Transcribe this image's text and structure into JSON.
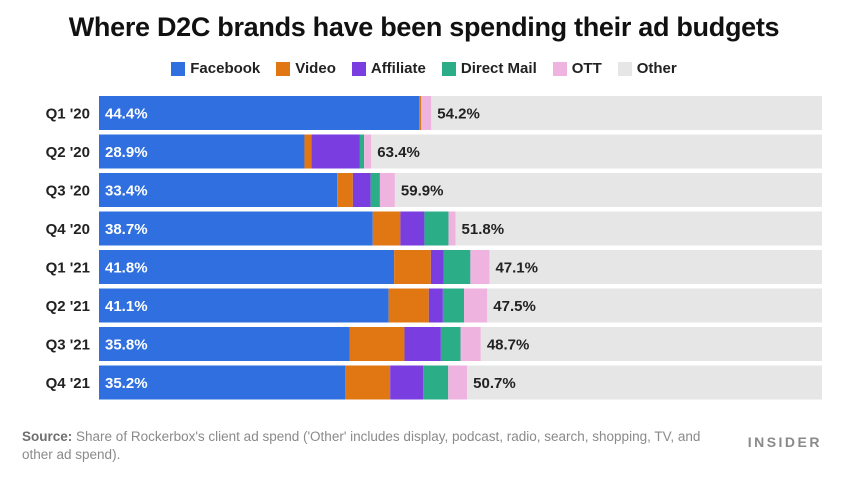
{
  "chart_data": {
    "type": "bar",
    "orientation": "horizontal",
    "stacked": true,
    "title": "Where D2C brands have been spending their ad budgets",
    "categories": [
      "Q1 '20",
      "Q2 '20",
      "Q3 '20",
      "Q4 '20",
      "Q1 '21",
      "Q2 '21",
      "Q3 '21",
      "Q4 '21"
    ],
    "series": [
      {
        "name": "Facebook",
        "color": "#2f6fdf",
        "values": [
          44.4,
          28.9,
          33.4,
          38.7,
          41.8,
          41.1,
          35.8,
          35.2
        ],
        "labels": [
          "44.4%",
          "28.9%",
          "33.4%",
          "38.7%",
          "41.8%",
          "41.1%",
          "35.8%",
          "35.2%"
        ]
      },
      {
        "name": "Video",
        "color": "#e07712",
        "values": [
          0.3,
          1.0,
          2.2,
          3.9,
          5.2,
          5.7,
          7.8,
          6.4
        ]
      },
      {
        "name": "Affiliate",
        "color": "#7a3ee0",
        "values": [
          0.0,
          6.8,
          2.5,
          3.4,
          1.8,
          2.0,
          5.2,
          4.7
        ]
      },
      {
        "name": "Direct Mail",
        "color": "#2bad88",
        "values": [
          0.0,
          0.6,
          1.3,
          3.4,
          3.8,
          3.0,
          2.8,
          3.6
        ]
      },
      {
        "name": "OTT",
        "color": "#efb3df",
        "values": [
          1.4,
          1.0,
          2.1,
          1.0,
          2.7,
          3.3,
          2.9,
          2.7
        ]
      },
      {
        "name": "Other",
        "color": "#e6e6e6",
        "values": [
          54.2,
          63.4,
          59.9,
          51.8,
          47.1,
          47.5,
          48.7,
          50.7
        ],
        "labels": [
          "54.2%",
          "63.4%",
          "59.9%",
          "51.8%",
          "47.1%",
          "47.5%",
          "48.7%",
          "50.7%"
        ]
      }
    ],
    "xlim": [
      0,
      100
    ],
    "legend_position": "top-center",
    "grid": false
  },
  "footer": {
    "source_label": "Source:",
    "source_text": "Share of Rockerbox's client ad spend ('Other' includes display, podcast, radio, search, shopping, TV, and other ad spend).",
    "brand": "INSIDER"
  }
}
